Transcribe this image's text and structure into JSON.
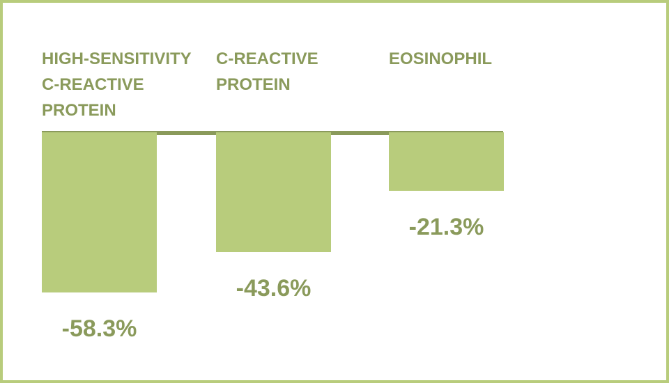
{
  "chart_data": {
    "type": "bar",
    "categories": [
      "HIGH-SENSITIVITY C-REACTIVE PROTEIN",
      "C-REACTIVE PROTEIN",
      "EOSINOPHIL"
    ],
    "values": [
      -58.3,
      -43.6,
      -21.3
    ],
    "value_labels": [
      "-58.3%",
      "-43.6%",
      "-21.3%"
    ],
    "color": "#b8cc7c"
  }
}
